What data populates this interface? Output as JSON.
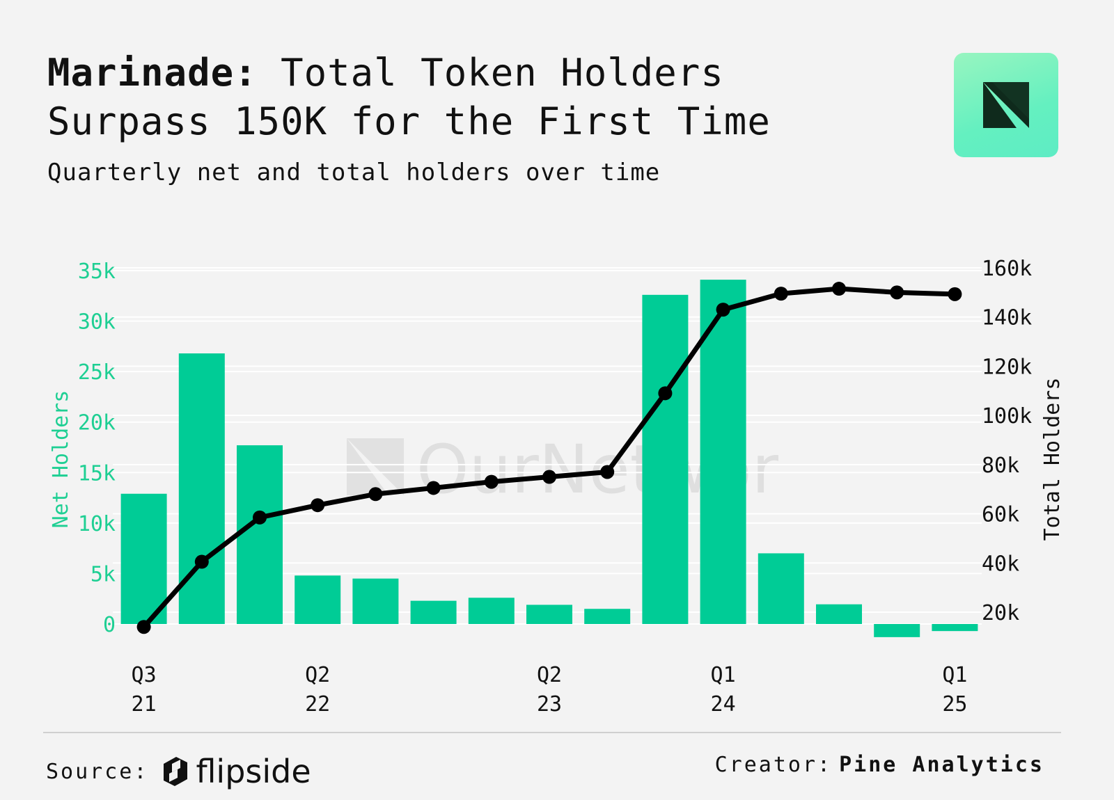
{
  "header": {
    "title_bold": "Marinade:",
    "title_rest": " Total Token Holders Surpass 150K for the First Time",
    "subtitle": "Quarterly net and total holders over time"
  },
  "watermark": {
    "text": "OurNetwork"
  },
  "footer": {
    "source_label": "Source:",
    "source_brand": "flipside",
    "creator_label": "Creator:",
    "creator_name": "Pine Analytics"
  },
  "colors": {
    "bar": "#00cc96",
    "line": "#000000",
    "left_axis": "#1ecf93",
    "background": "#f3f3f3"
  },
  "chart_data": {
    "type": "bar",
    "left_axis_title": "Net Holders",
    "right_axis_title": "Total Holders",
    "left_ticks": [
      0,
      5000,
      10000,
      15000,
      20000,
      25000,
      30000,
      35000
    ],
    "left_tick_labels": [
      "0",
      "5k",
      "10k",
      "15k",
      "20k",
      "25k",
      "30k",
      "35k"
    ],
    "right_ticks": [
      20000,
      40000,
      60000,
      80000,
      100000,
      120000,
      140000,
      160000
    ],
    "right_tick_labels": [
      "20k",
      "40k",
      "60k",
      "80k",
      "100k",
      "120k",
      "140k",
      "160k"
    ],
    "left_ylim": [
      -2000,
      35000
    ],
    "right_ylim": [
      13600,
      161000
    ],
    "grid": true,
    "x_tick_labels": [
      {
        "index": 0,
        "line1": "Q3",
        "line2": "21"
      },
      {
        "index": 3,
        "line1": "Q2",
        "line2": "22"
      },
      {
        "index": 7,
        "line1": "Q2",
        "line2": "23"
      },
      {
        "index": 10,
        "line1": "Q1",
        "line2": "24"
      },
      {
        "index": 14,
        "line1": "Q1",
        "line2": "25"
      }
    ],
    "series": [
      {
        "name": "Net Holders",
        "type": "bar",
        "axis": "left",
        "values": [
          12900,
          26800,
          17700,
          4800,
          4500,
          2300,
          2600,
          1900,
          1500,
          32600,
          34100,
          7000,
          1950,
          -1300,
          -700
        ]
      },
      {
        "name": "Total Holders",
        "type": "line",
        "axis": "right",
        "values": [
          14000,
          40500,
          58500,
          63500,
          68000,
          70500,
          73000,
          75000,
          77000,
          109000,
          143000,
          149500,
          151500,
          150000,
          149300
        ]
      }
    ]
  }
}
